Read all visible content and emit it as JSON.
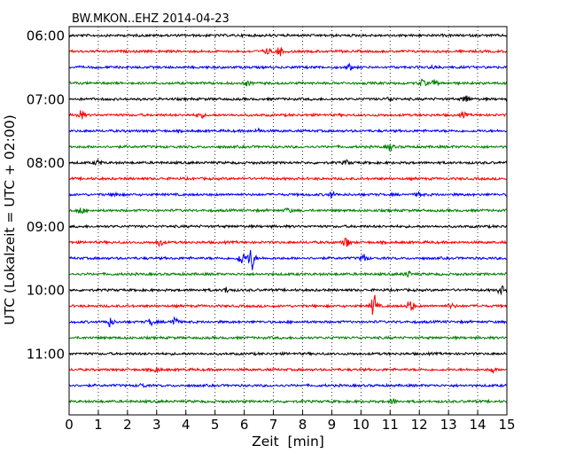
{
  "chart_data": {
    "type": "line",
    "title": "BW.MKON..EHZ 2014-04-23",
    "xlabel": "Zeit  [min]",
    "ylabel": "UTC (Lokalzeit = UTC + 02:00)",
    "xlim": [
      0,
      15
    ],
    "x_ticks": [
      "0",
      "1",
      "2",
      "3",
      "4",
      "5",
      "6",
      "7",
      "8",
      "9",
      "10",
      "11",
      "12",
      "13",
      "14",
      "15"
    ],
    "y_ticks": [
      "06:00",
      "07:00",
      "08:00",
      "09:00",
      "10:00",
      "11:00"
    ],
    "grid": "vertical dotted lines at each minute",
    "colors": [
      "#000000",
      "#ff0000",
      "#0000ff",
      "#008000"
    ],
    "rows": [
      {
        "start": "06:00",
        "color": "#000000",
        "events": []
      },
      {
        "start": "06:15",
        "color": "#ff0000",
        "events": [
          {
            "min": 7.2,
            "amp": 0.6
          },
          {
            "min": 6.8,
            "amp": 0.35
          }
        ]
      },
      {
        "start": "06:30",
        "color": "#0000ff",
        "events": [
          {
            "min": 9.6,
            "amp": 0.35
          },
          {
            "min": 12.5,
            "amp": 0.2
          }
        ]
      },
      {
        "start": "06:45",
        "color": "#008000",
        "events": [
          {
            "min": 6.1,
            "amp": 0.3
          },
          {
            "min": 12.1,
            "amp": 0.45
          },
          {
            "min": 12.5,
            "amp": 0.4
          }
        ]
      },
      {
        "start": "07:00",
        "color": "#000000",
        "events": [
          {
            "min": 11.0,
            "amp": 0.3
          },
          {
            "min": 13.6,
            "amp": 0.55
          }
        ]
      },
      {
        "start": "07:15",
        "color": "#ff0000",
        "events": [
          {
            "min": 0.4,
            "amp": 0.6
          },
          {
            "min": 4.5,
            "amp": 0.35
          },
          {
            "min": 13.5,
            "amp": 0.35
          }
        ]
      },
      {
        "start": "07:30",
        "color": "#0000ff",
        "events": [
          {
            "min": 6.5,
            "amp": 0.25
          }
        ]
      },
      {
        "start": "07:45",
        "color": "#008000",
        "events": [
          {
            "min": 11.0,
            "amp": 0.5
          }
        ]
      },
      {
        "start": "08:00",
        "color": "#000000",
        "events": [
          {
            "min": 1.0,
            "amp": 0.35
          },
          {
            "min": 9.5,
            "amp": 0.25
          }
        ]
      },
      {
        "start": "08:15",
        "color": "#ff0000",
        "events": []
      },
      {
        "start": "08:30",
        "color": "#0000ff",
        "events": [
          {
            "min": 1.6,
            "amp": 0.3
          },
          {
            "min": 9.0,
            "amp": 0.4
          },
          {
            "min": 12.0,
            "amp": 0.3
          }
        ]
      },
      {
        "start": "08:45",
        "color": "#008000",
        "events": [
          {
            "min": 0.4,
            "amp": 0.45
          },
          {
            "min": 7.5,
            "amp": 0.3
          }
        ]
      },
      {
        "start": "09:00",
        "color": "#000000",
        "events": []
      },
      {
        "start": "09:15",
        "color": "#ff0000",
        "events": [
          {
            "min": 3.1,
            "amp": 0.45
          },
          {
            "min": 9.5,
            "amp": 0.7
          }
        ]
      },
      {
        "start": "09:30",
        "color": "#0000ff",
        "events": [
          {
            "min": 5.9,
            "amp": 0.9
          },
          {
            "min": 6.25,
            "amp": 1.7
          },
          {
            "min": 10.1,
            "amp": 0.55
          }
        ]
      },
      {
        "start": "09:45",
        "color": "#008000",
        "events": [
          {
            "min": 11.6,
            "amp": 0.4
          }
        ]
      },
      {
        "start": "10:00",
        "color": "#000000",
        "events": [
          {
            "min": 5.4,
            "amp": 0.35
          },
          {
            "min": 14.8,
            "amp": 0.55
          }
        ]
      },
      {
        "start": "10:15",
        "color": "#ff0000",
        "events": [
          {
            "min": 10.45,
            "amp": 1.6
          },
          {
            "min": 11.7,
            "amp": 0.9
          },
          {
            "min": 13.1,
            "amp": 0.3
          }
        ]
      },
      {
        "start": "10:30",
        "color": "#0000ff",
        "events": [
          {
            "min": 1.4,
            "amp": 0.6
          },
          {
            "min": 2.8,
            "amp": 0.45
          },
          {
            "min": 3.6,
            "amp": 0.7
          }
        ]
      },
      {
        "start": "10:45",
        "color": "#008000",
        "events": []
      },
      {
        "start": "11:00",
        "color": "#000000",
        "events": []
      },
      {
        "start": "11:15",
        "color": "#ff0000",
        "events": [
          {
            "min": 3.0,
            "amp": 0.35
          },
          {
            "min": 14.5,
            "amp": 0.35
          }
        ]
      },
      {
        "start": "11:30",
        "color": "#0000ff",
        "events": [
          {
            "min": 2.5,
            "amp": 0.25
          }
        ]
      },
      {
        "start": "11:45",
        "color": "#008000",
        "events": [
          {
            "min": 11.1,
            "amp": 0.35
          }
        ]
      }
    ]
  }
}
